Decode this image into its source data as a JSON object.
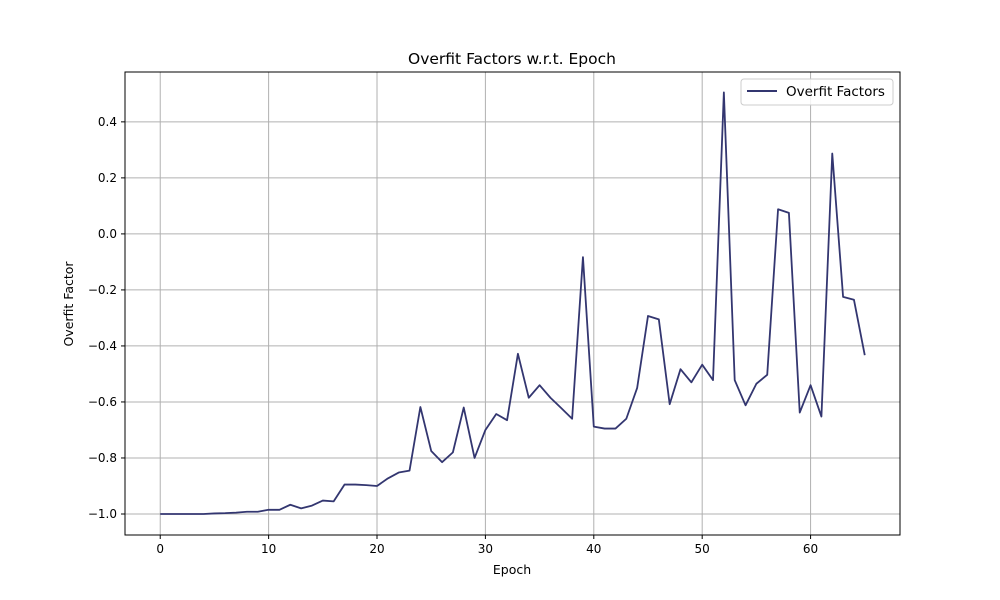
{
  "chart_data": {
    "type": "line",
    "title": "Overfit Factors w.r.t. Epoch",
    "xlabel": "Epoch",
    "ylabel": "Overfit Factor",
    "xlim": [
      -3.25,
      68.25
    ],
    "ylim": [
      -1.075,
      0.578
    ],
    "xticks": [
      0,
      10,
      20,
      30,
      40,
      50,
      60
    ],
    "yticks": [
      -1.0,
      -0.8,
      -0.6,
      -0.4,
      -0.2,
      0.0,
      0.2,
      0.4
    ],
    "ytick_labels": [
      "−1.0",
      "−0.8",
      "−0.6",
      "−0.4",
      "−0.2",
      "0.0",
      "0.2",
      "0.4"
    ],
    "grid": true,
    "legend_position": "upper right",
    "series": [
      {
        "name": "Overfit Factors",
        "color": "#333670",
        "x": [
          0,
          1,
          2,
          3,
          4,
          5,
          6,
          7,
          8,
          9,
          10,
          11,
          12,
          13,
          14,
          15,
          16,
          17,
          18,
          19,
          20,
          21,
          22,
          23,
          24,
          25,
          26,
          27,
          28,
          29,
          30,
          31,
          32,
          33,
          34,
          35,
          36,
          37,
          38,
          39,
          40,
          41,
          42,
          43,
          44,
          45,
          46,
          47,
          48,
          49,
          50,
          51,
          52,
          53,
          54,
          55,
          56,
          57,
          58,
          59,
          60,
          61,
          62,
          63,
          64,
          65
        ],
        "y": [
          -1.0,
          -1.0,
          -1.0,
          -1.0,
          -1.0,
          -0.998,
          -0.997,
          -0.995,
          -0.992,
          -0.992,
          -0.985,
          -0.985,
          -0.967,
          -0.98,
          -0.97,
          -0.952,
          -0.955,
          -0.895,
          -0.895,
          -0.897,
          -0.9,
          -0.873,
          -0.852,
          -0.845,
          -0.618,
          -0.775,
          -0.815,
          -0.78,
          -0.62,
          -0.8,
          -0.7,
          -0.643,
          -0.665,
          -0.428,
          -0.585,
          -0.54,
          -0.585,
          -0.622,
          -0.66,
          -0.083,
          -0.688,
          -0.695,
          -0.695,
          -0.66,
          -0.55,
          -0.293,
          -0.305,
          -0.608,
          -0.483,
          -0.53,
          -0.467,
          -0.522,
          0.505,
          -0.522,
          -0.612,
          -0.535,
          -0.503,
          0.088,
          0.075,
          -0.638,
          -0.54,
          -0.652,
          0.287,
          -0.225,
          -0.235,
          -0.433
        ]
      }
    ]
  }
}
